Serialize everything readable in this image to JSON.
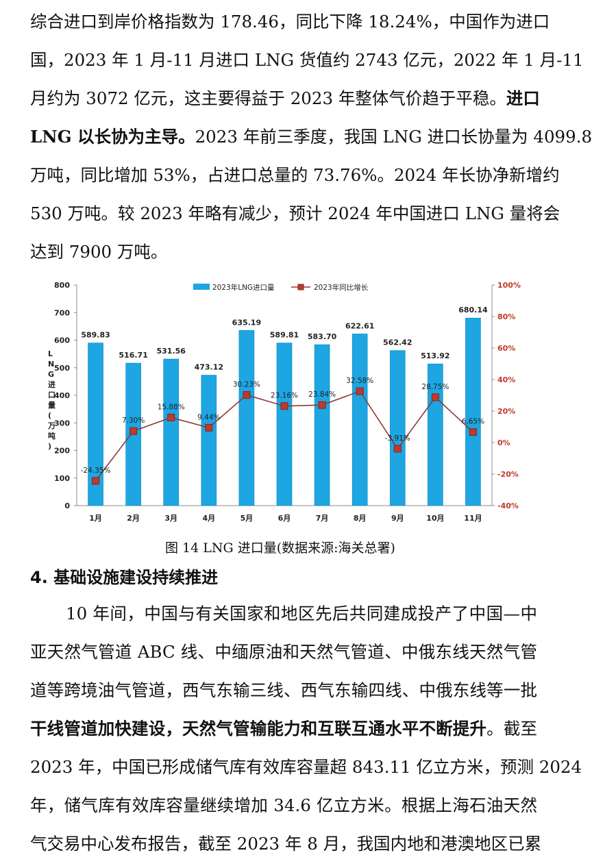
{
  "top_paragraph": {
    "lines": [
      [
        {
          "t": "综合进口到岸价格指数为 178.46，同比下降 18.24%，中国作为进口"
        }
      ],
      [
        {
          "t": "国，2023 年 1 月-11 月进口 LNG 货值约 2743 亿元，2022 年 1 月-11"
        }
      ],
      [
        {
          "t": "月约为 3072 亿元，这主要得益于 2023 年整体气价趋于平稳。"
        },
        {
          "t": "进口",
          "b": true
        }
      ],
      [
        {
          "t": "LNG 以长协为主导。",
          "b": true
        },
        {
          "t": "2023 年前三季度，我国 LNG 进口长协量为 4099.8"
        }
      ],
      [
        {
          "t": "万吨，同比增加 53%，占进口总量的 73.76%。2024 年长协净新增约"
        }
      ],
      [
        {
          "t": "530 万吨。较 2023 年略有减少，预计 2024 年中国进口 LNG 量将会"
        }
      ],
      [
        {
          "t": "达到 7900 万吨。"
        }
      ]
    ]
  },
  "figure": {
    "caption": "图 14 LNG 进口量(数据来源:海关总署)"
  },
  "chart_data": {
    "type": "bar",
    "categories": [
      "1月",
      "2月",
      "3月",
      "4月",
      "5月",
      "6月",
      "7月",
      "8月",
      "9月",
      "10月",
      "11月"
    ],
    "series": [
      {
        "name": "2023年LNG进口量",
        "type": "bar",
        "axis": "left",
        "values": [
          589.83,
          516.71,
          531.56,
          473.12,
          635.19,
          589.81,
          583.7,
          622.61,
          562.42,
          513.92,
          680.14
        ],
        "labels": [
          "589.83",
          "516.71",
          "531.56",
          "473.12",
          "635.19",
          "589.81",
          "583.70",
          "622.61",
          "562.42",
          "513.92",
          "680.14"
        ]
      },
      {
        "name": "2023年同比增长",
        "type": "line",
        "axis": "right",
        "values": [
          -24.35,
          7.3,
          15.88,
          9.44,
          30.23,
          23.16,
          23.84,
          32.58,
          -3.91,
          28.75,
          6.65
        ],
        "labels": [
          "-24.35%",
          "7.30%",
          "15.88%",
          "9.44%",
          "30.23%",
          "23.16%",
          "23.84%",
          "32.58%",
          "-3.91%",
          "28.75%",
          "6.65%"
        ]
      }
    ],
    "ylabel": "LNG进口量(万吨)",
    "ylim": [
      0,
      800
    ],
    "yticks": [
      "0",
      "100",
      "200",
      "300",
      "400",
      "500",
      "600",
      "700",
      "800"
    ],
    "y2lim": [
      -40,
      100
    ],
    "y2ticks": [
      "-40%",
      "-20%",
      "0%",
      "20%",
      "40%",
      "60%",
      "80%",
      "100%"
    ],
    "legend": "top-center",
    "grid": false,
    "colors": {
      "bar": "#1DA6E2",
      "bar_edge": "#0E86C4",
      "line": "#8E3A33",
      "marker": "#C0392B",
      "right_axis": "#C0392B"
    }
  },
  "section": {
    "heading": "4. 基础设施建设持续推进"
  },
  "bottom_paragraph": {
    "lines": [
      [
        {
          "t": "10 年间，中国与有关国家和地区先后共同建成投产了中国—中"
        }
      ],
      [
        {
          "t": "亚天然气管道 ABC 线、中缅原油和天然气管道、中俄东线天然气管"
        }
      ],
      [
        {
          "t": "道等跨境油气管道，西气东输三线、西气东输四线、中俄东线等一批"
        }
      ],
      [
        {
          "t": "干线管道加快建设，天然气管输能力和互联互通水平不断提升",
          "b": true
        },
        {
          "t": "。截至"
        }
      ],
      [
        {
          "t": "2023 年，中国已形成储气库有效库容量超 843.11 亿立方米，预测 2024"
        }
      ],
      [
        {
          "t": "年，储气库有效库容量继续增加 34.6 亿立方米。根据上海石油天然"
        }
      ],
      [
        {
          "t": "气交易中心发布报告，截至 2023 年 8 月，我国内地和港澳地区已累"
        }
      ]
    ]
  }
}
